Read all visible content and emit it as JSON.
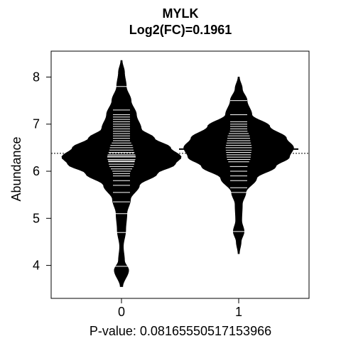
{
  "chart_data": {
    "type": "beanplot",
    "title": "MYLK",
    "subtitle": "Log2(FC)=0.1961",
    "xlabel": "P-value: 0.08165550517153966",
    "ylabel": "Abundance",
    "categories": [
      "0",
      "1"
    ],
    "yticks": [
      "4",
      "5",
      "6",
      "7",
      "8"
    ],
    "ylim": [
      3.3,
      8.55
    ],
    "overall_mean": 6.38,
    "groups": [
      {
        "name": "0",
        "mean": 6.28,
        "range": [
          3.55,
          8.35
        ],
        "points": [
          3.98,
          4.7,
          5.1,
          5.35,
          5.55,
          5.7,
          5.8,
          5.9,
          5.95,
          6.0,
          6.05,
          6.1,
          6.15,
          6.2,
          6.22,
          6.25,
          6.28,
          6.3,
          6.32,
          6.35,
          6.38,
          6.4,
          6.45,
          6.5,
          6.55,
          6.6,
          6.65,
          6.7,
          6.75,
          6.8,
          6.85,
          6.9,
          6.95,
          7.0,
          7.05,
          7.1,
          7.15,
          7.2,
          7.3,
          7.8
        ]
      },
      {
        "name": "1",
        "mean": 6.47,
        "range": [
          4.25,
          8.0
        ],
        "points": [
          4.72,
          5.55,
          5.65,
          5.8,
          5.9,
          6.0,
          6.1,
          6.2,
          6.25,
          6.3,
          6.35,
          6.4,
          6.45,
          6.5,
          6.55,
          6.6,
          6.65,
          6.7,
          6.75,
          6.8,
          6.85,
          6.9,
          6.95,
          7.0,
          7.05,
          7.2,
          7.5
        ]
      }
    ],
    "density_profiles": [
      [
        [
          3.55,
          0.02
        ],
        [
          3.9,
          0.12
        ],
        [
          4.1,
          0.05
        ],
        [
          4.4,
          0.03
        ],
        [
          4.75,
          0.07
        ],
        [
          5.1,
          0.09
        ],
        [
          5.4,
          0.15
        ],
        [
          5.7,
          0.3
        ],
        [
          5.95,
          0.6
        ],
        [
          6.15,
          0.9
        ],
        [
          6.3,
          1.0
        ],
        [
          6.5,
          0.82
        ],
        [
          6.7,
          0.55
        ],
        [
          6.9,
          0.33
        ],
        [
          7.2,
          0.25
        ],
        [
          7.5,
          0.16
        ],
        [
          7.8,
          0.08
        ],
        [
          8.1,
          0.05
        ],
        [
          8.35,
          0.01
        ]
      ],
      [
        [
          4.25,
          0.01
        ],
        [
          4.5,
          0.04
        ],
        [
          4.72,
          0.09
        ],
        [
          4.95,
          0.05
        ],
        [
          5.3,
          0.06
        ],
        [
          5.55,
          0.12
        ],
        [
          5.85,
          0.3
        ],
        [
          6.1,
          0.62
        ],
        [
          6.3,
          0.85
        ],
        [
          6.5,
          0.92
        ],
        [
          6.7,
          0.8
        ],
        [
          6.95,
          0.52
        ],
        [
          7.2,
          0.22
        ],
        [
          7.5,
          0.14
        ],
        [
          7.75,
          0.06
        ],
        [
          8.0,
          0.01
        ]
      ]
    ],
    "grid": false,
    "legend": "none"
  }
}
